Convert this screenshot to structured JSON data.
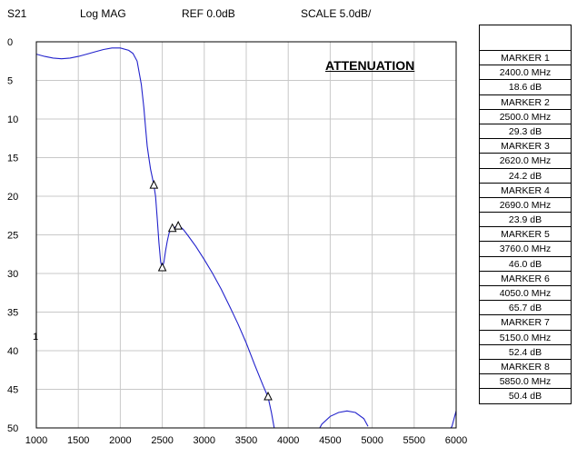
{
  "header": {
    "param": "S21",
    "format": "Log MAG",
    "ref": "REF 0.0dB",
    "scale": "SCALE 5.0dB/"
  },
  "annotation": "ATTENUATION",
  "stray_label": "1",
  "markers": [
    {
      "name": "MARKER 1",
      "freq": "2400.0 MHz",
      "value": "18.6 dB"
    },
    {
      "name": "MARKER 2",
      "freq": "2500.0 MHz",
      "value": "29.3 dB"
    },
    {
      "name": "MARKER 3",
      "freq": "2620.0 MHz",
      "value": "24.2 dB"
    },
    {
      "name": "MARKER 4",
      "freq": "2690.0 MHz",
      "value": "23.9 dB"
    },
    {
      "name": "MARKER 5",
      "freq": "3760.0 MHz",
      "value": "46.0 dB"
    },
    {
      "name": "MARKER 6",
      "freq": "4050.0 MHz",
      "value": "65.7 dB"
    },
    {
      "name": "MARKER 7",
      "freq": "5150.0 MHz",
      "value": "52.4 dB"
    },
    {
      "name": "MARKER 8",
      "freq": "5850.0 MHz",
      "value": "50.4 dB"
    }
  ],
  "colors": {
    "trace": "#2222cc",
    "grid": "#c8c8c8",
    "frame": "#000000"
  },
  "chart_data": {
    "type": "line",
    "title": "ATTENUATION",
    "xlabel": "",
    "ylabel": "",
    "xlim": [
      1000,
      6000
    ],
    "ylim": [
      50,
      0
    ],
    "y_inverted": true,
    "grid": true,
    "x_ticks": [
      1000,
      1500,
      2000,
      2500,
      3000,
      3500,
      4000,
      4500,
      5000,
      5500,
      6000
    ],
    "y_ticks": [
      0,
      5,
      10,
      15,
      20,
      25,
      30,
      35,
      40,
      45,
      50
    ],
    "series": [
      {
        "x": [
          1000,
          1100,
          1200,
          1300,
          1400,
          1500,
          1600,
          1700,
          1800,
          1900,
          2000,
          2100,
          2150,
          2200,
          2250,
          2280,
          2300,
          2320,
          2340,
          2360,
          2380,
          2400,
          2420,
          2440,
          2460,
          2480,
          2500,
          2520,
          2540,
          2560,
          2580,
          2600,
          2620,
          2650,
          2690,
          2720,
          2750,
          2800,
          2900,
          3000,
          3100,
          3200,
          3300,
          3400,
          3500,
          3600,
          3700,
          3760,
          3800,
          3850
        ],
        "y": [
          1.6,
          1.9,
          2.1,
          2.2,
          2.1,
          1.9,
          1.6,
          1.3,
          1.0,
          0.8,
          0.8,
          1.1,
          1.5,
          2.5,
          5.5,
          8.5,
          11.0,
          13.5,
          15.0,
          16.5,
          17.5,
          18.6,
          20.0,
          23.0,
          26.0,
          28.5,
          29.3,
          28.5,
          27.0,
          25.8,
          24.8,
          24.4,
          24.2,
          24.0,
          23.9,
          24.0,
          24.3,
          25.0,
          26.5,
          28.2,
          30.0,
          32.0,
          34.2,
          36.5,
          39.0,
          41.8,
          44.5,
          46.0,
          48.0,
          51.0
        ]
      },
      {
        "x": [
          4350,
          4400,
          4500,
          4600,
          4700,
          4800,
          4900,
          4950
        ],
        "y": [
          50.5,
          49.5,
          48.5,
          48.0,
          47.8,
          48.0,
          48.8,
          49.8
        ]
      },
      {
        "x": [
          5900,
          5950,
          6000
        ],
        "y": [
          50.5,
          49.8,
          47.8
        ]
      }
    ],
    "markers": [
      {
        "x": 2400,
        "y": 18.6
      },
      {
        "x": 2500,
        "y": 29.3
      },
      {
        "x": 2620,
        "y": 24.2
      },
      {
        "x": 2690,
        "y": 23.9
      },
      {
        "x": 3760,
        "y": 46.0
      }
    ]
  }
}
